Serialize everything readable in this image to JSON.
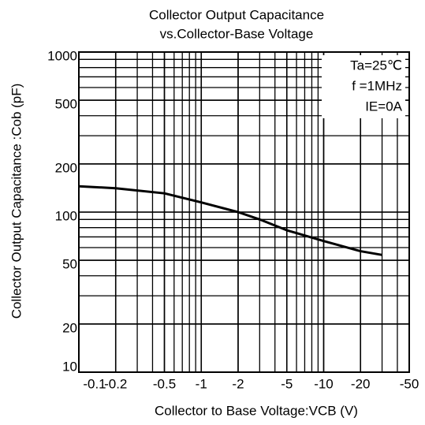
{
  "chart_data": {
    "type": "line",
    "title": "Collector Output Capacitance",
    "subtitle": "vs.Collector-Base Voltage",
    "x_label": "Collector to Base Voltage:VCB (V)",
    "y_label": "Collector  Output Capacitance :Cob (pF)",
    "annotations": [
      "Ta=25℃",
      "f =1MHz",
      "IE=0A"
    ],
    "x": [
      -0.1,
      -0.2,
      -0.5,
      -1,
      -2,
      -3,
      -5,
      -10,
      -20,
      -30
    ],
    "series": [
      {
        "name": "Cob",
        "color": "#000000",
        "values": [
          145,
          141,
          131,
          115,
          100,
          90,
          77,
          66,
          57,
          54
        ]
      }
    ],
    "xscale": "log",
    "yscale": "log",
    "xlim": [
      -0.1,
      -50
    ],
    "ylim": [
      10,
      1000
    ],
    "xticks": [
      -0.1,
      -0.2,
      -0.5,
      -1,
      -2,
      -5,
      -10,
      -20,
      -50
    ],
    "yticks": [
      10,
      20,
      50,
      100,
      200,
      500,
      1000
    ],
    "grid": true
  }
}
